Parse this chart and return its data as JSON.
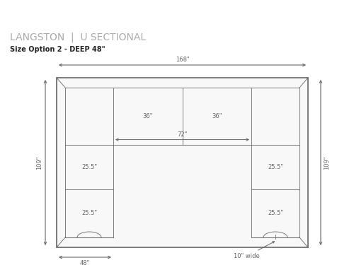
{
  "bg_color": "#ffffff",
  "line_color": "#666666",
  "dim_color": "#666666",
  "title": "LANGSTON  |  U SECTIONAL",
  "subtitle": "Size Option 2 - DEEP 48\"",
  "title_fontsize": 10,
  "subtitle_fontsize": 7,
  "dim_fontsize": 6,
  "annotation_fontsize": 6,
  "label_168": "168\"",
  "label_109_left": "109\"",
  "label_109_right": "109\"",
  "label_48": "48\"",
  "label_36_left": "36\"",
  "label_36_right": "36\"",
  "label_72": "72\"",
  "label_25_5_tl": "25.5\"",
  "label_25_5_tr": "25.5\"",
  "label_25_5_bl": "25.5\"",
  "label_25_5_br": "25.5\"",
  "label_10wide": "10\" wide"
}
